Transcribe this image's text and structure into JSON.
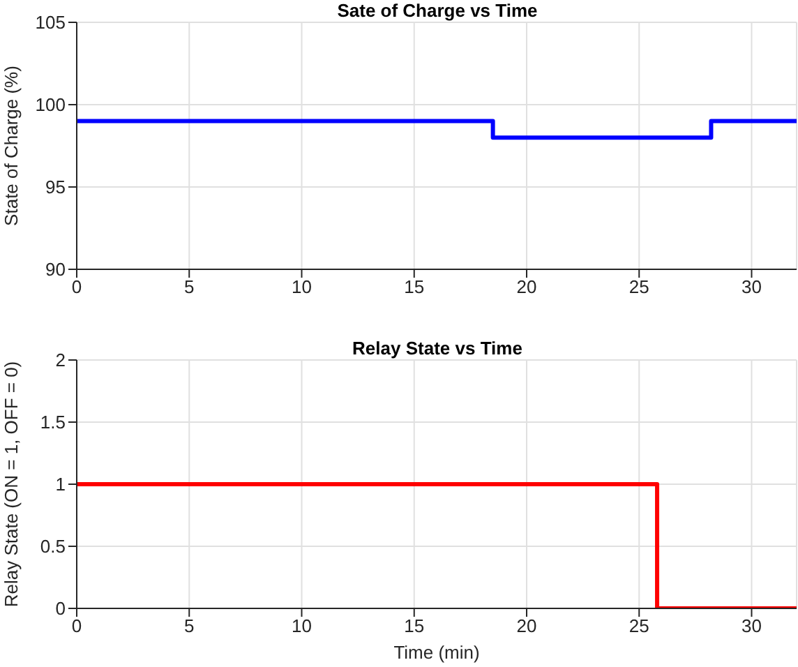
{
  "chart_data": [
    {
      "type": "step",
      "title": "Sate of Charge vs Time",
      "ylabel": "State of Charge (%)",
      "xlim": [
        0,
        32
      ],
      "xticks": [
        0,
        5,
        10,
        15,
        20,
        25,
        30
      ],
      "ylim": [
        90,
        105
      ],
      "yticks": [
        90,
        95,
        100,
        105
      ],
      "grid": true,
      "line_style": "solid",
      "series": [
        {
          "color": "#0000ff",
          "x": [
            0,
            18.5,
            28.2,
            32
          ],
          "values": [
            99,
            98,
            99,
            99
          ]
        }
      ]
    },
    {
      "type": "step",
      "title": "Relay State vs Time",
      "xlabel": "Time (min)",
      "ylabel": "Relay State (ON = 1, OFF = 0)",
      "xlim": [
        0,
        32
      ],
      "xticks": [
        0,
        5,
        10,
        15,
        20,
        25,
        30
      ],
      "ylim": [
        0,
        2
      ],
      "yticks": [
        0,
        0.5,
        1,
        1.5,
        2
      ],
      "grid": true,
      "line_style": "solid",
      "series": [
        {
          "color": "#ff0000",
          "x": [
            0,
            25.8,
            32
          ],
          "values": [
            1,
            0,
            0
          ]
        }
      ]
    }
  ]
}
